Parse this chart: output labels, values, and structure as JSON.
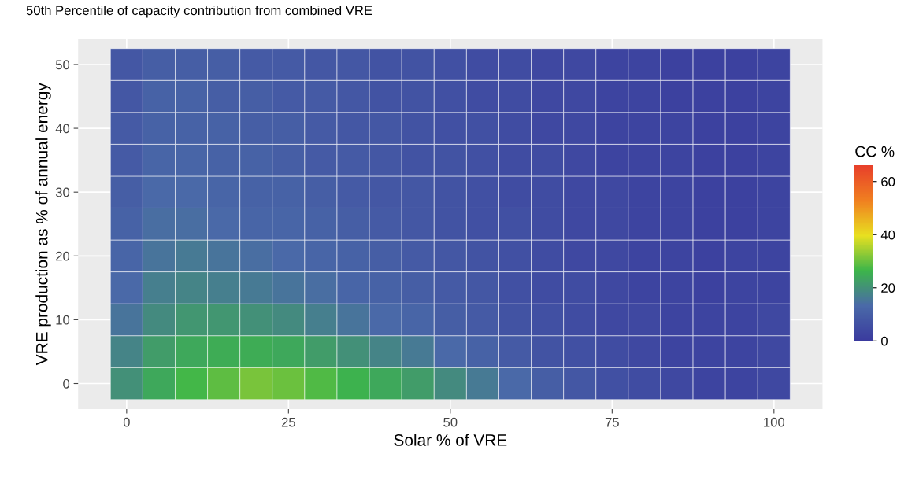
{
  "chart_data": {
    "type": "heatmap",
    "title": "50th Percentile of capacity contribution from combined VRE",
    "xlabel": "Solar % of VRE",
    "ylabel": "VRE production as % of annual energy",
    "clabel": "CC %",
    "categories": [
      "0",
      null,
      null,
      null,
      null,
      "25",
      null,
      null,
      null,
      null,
      "50",
      null,
      null,
      null,
      null,
      "75",
      null,
      null,
      null,
      null,
      "100"
    ],
    "y_categories": [
      "50",
      null,
      "40",
      null,
      "30",
      null,
      "20",
      null,
      "10",
      null,
      "0"
    ],
    "cells": [
      [
        8,
        10,
        10,
        10,
        9,
        9,
        8,
        8,
        7,
        7,
        6,
        5,
        5,
        4,
        4,
        3,
        3,
        2,
        2,
        2,
        3
      ],
      [
        8,
        11,
        11,
        10,
        10,
        9,
        9,
        8,
        7,
        7,
        6,
        5,
        5,
        4,
        4,
        3,
        3,
        2,
        2,
        2,
        3
      ],
      [
        9,
        11,
        11,
        11,
        10,
        10,
        9,
        8,
        8,
        7,
        6,
        6,
        5,
        4,
        4,
        3,
        3,
        3,
        2,
        2,
        3
      ],
      [
        9,
        12,
        12,
        11,
        11,
        10,
        9,
        9,
        8,
        7,
        7,
        6,
        5,
        5,
        4,
        3,
        3,
        3,
        2,
        2,
        3
      ],
      [
        10,
        13,
        13,
        12,
        11,
        11,
        10,
        9,
        8,
        8,
        7,
        6,
        5,
        5,
        4,
        4,
        3,
        3,
        2,
        2,
        3
      ],
      [
        11,
        14,
        14,
        13,
        12,
        12,
        11,
        10,
        9,
        8,
        7,
        6,
        6,
        5,
        4,
        4,
        3,
        3,
        2,
        2,
        3
      ],
      [
        12,
        15,
        16,
        15,
        14,
        13,
        12,
        11,
        10,
        9,
        8,
        7,
        6,
        5,
        4,
        4,
        3,
        3,
        2,
        3,
        3
      ],
      [
        13,
        17,
        18,
        17,
        16,
        15,
        14,
        12,
        11,
        10,
        9,
        8,
        6,
        5,
        5,
        4,
        3,
        3,
        2,
        3,
        3
      ],
      [
        15,
        19,
        21,
        21,
        20,
        19,
        17,
        15,
        13,
        12,
        10,
        9,
        7,
        6,
        5,
        4,
        4,
        3,
        3,
        3,
        4
      ],
      [
        18,
        22,
        24,
        25,
        25,
        24,
        22,
        20,
        18,
        16,
        13,
        11,
        9,
        7,
        6,
        5,
        4,
        3,
        3,
        3,
        4
      ],
      [
        20,
        24,
        27,
        29,
        31,
        30,
        28,
        26,
        24,
        22,
        19,
        16,
        13,
        10,
        8,
        6,
        5,
        4,
        3,
        3,
        4
      ]
    ],
    "clim": [
      0,
      66
    ],
    "cticks": [
      0,
      20,
      40,
      60
    ],
    "grid": true
  }
}
